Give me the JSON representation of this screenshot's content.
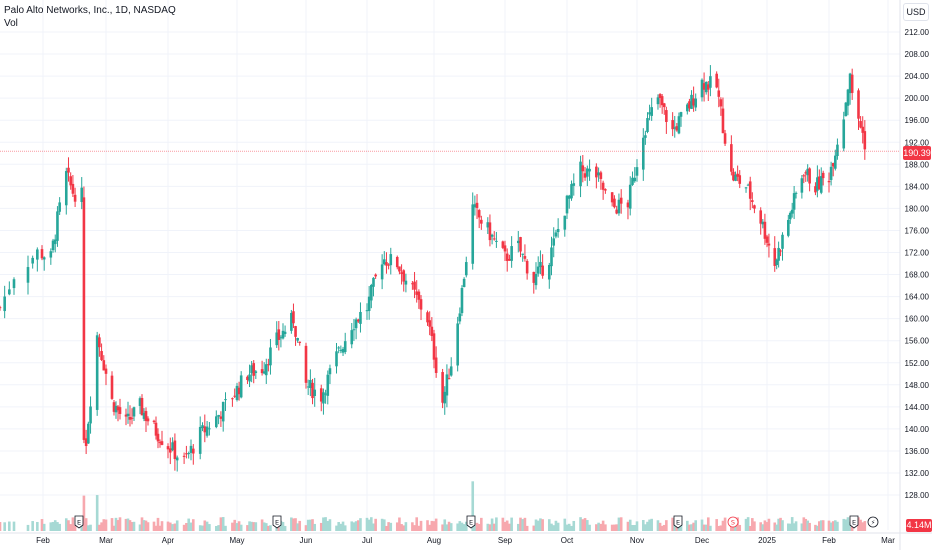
{
  "header": {
    "symbol_line": "Palo Alto Networks, Inc., 1D, NASDAQ",
    "volume_label": "Vol"
  },
  "currency": "USD",
  "last_price_label": "190.39",
  "last_volume_label": "4.14M",
  "colors": {
    "up": "#26a69a",
    "down": "#f23645",
    "vol_up": "#a6d9d4",
    "vol_down": "#f7a8ae",
    "grid": "#f0f3fa",
    "price_line": "#f23645"
  },
  "chart_data": {
    "type": "candlestick",
    "title": "Palo Alto Networks, Inc., 1D, NASDAQ",
    "xlabel": "",
    "ylabel": "",
    "ylim": [
      124,
      214
    ],
    "y_ticks": [
      128,
      132,
      136,
      140,
      144,
      148,
      152,
      156,
      160,
      164,
      168,
      172,
      176,
      180,
      184,
      188,
      192,
      196,
      200,
      204,
      208,
      212
    ],
    "y_tick_labels": [
      "128.00",
      "132.00",
      "136.00",
      "140.00",
      "144.00",
      "148.00",
      "152.00",
      "156.00",
      "160.00",
      "164.00",
      "168.00",
      "172.00",
      "176.00",
      "180.00",
      "184.00",
      "188.00",
      "192.00",
      "196.00",
      "200.00",
      "204.00",
      "208.00",
      "212.00"
    ],
    "x_labels": [
      "Feb",
      "Mar",
      "Apr",
      "May",
      "Jun",
      "Jul",
      "Aug",
      "Sep",
      "Oct",
      "Nov",
      "Dec",
      "2025",
      "Feb",
      "Mar"
    ],
    "last_price": 190.39,
    "grid": true,
    "events": [
      {
        "type": "earnings",
        "label": "E"
      },
      {
        "type": "earnings",
        "label": "E"
      },
      {
        "type": "earnings",
        "label": "E"
      },
      {
        "type": "earnings",
        "label": "E"
      },
      {
        "type": "split",
        "label": "S"
      },
      {
        "type": "earnings",
        "label": "E"
      },
      {
        "type": "upcoming",
        "label": "⚡"
      }
    ],
    "close_path": [
      {
        "date": "2024-01-23",
        "close": 162
      },
      {
        "date": "2024-01-26",
        "close": 168
      },
      {
        "date": "2024-01-31",
        "close": 172
      },
      {
        "date": "2024-02-05",
        "close": 171
      },
      {
        "date": "2024-02-08",
        "close": 178
      },
      {
        "date": "2024-02-12",
        "close": 186
      },
      {
        "date": "2024-02-15",
        "close": 183
      },
      {
        "date": "2024-02-20",
        "close": 182
      },
      {
        "date": "2024-02-21",
        "close": 138
      },
      {
        "date": "2024-02-26",
        "close": 157
      },
      {
        "date": "2024-03-04",
        "close": 145
      },
      {
        "date": "2024-03-11",
        "close": 141
      },
      {
        "date": "2024-03-18",
        "close": 144
      },
      {
        "date": "2024-03-25",
        "close": 140
      },
      {
        "date": "2024-04-01",
        "close": 137
      },
      {
        "date": "2024-04-08",
        "close": 134
      },
      {
        "date": "2024-04-15",
        "close": 139
      },
      {
        "date": "2024-04-22",
        "close": 142
      },
      {
        "date": "2024-04-29",
        "close": 146
      },
      {
        "date": "2024-05-06",
        "close": 150
      },
      {
        "date": "2024-05-13",
        "close": 151
      },
      {
        "date": "2024-05-20",
        "close": 156
      },
      {
        "date": "2024-05-28",
        "close": 160
      },
      {
        "date": "2024-06-03",
        "close": 148
      },
      {
        "date": "2024-06-10",
        "close": 146
      },
      {
        "date": "2024-06-17",
        "close": 153
      },
      {
        "date": "2024-06-24",
        "close": 159
      },
      {
        "date": "2024-07-01",
        "close": 162
      },
      {
        "date": "2024-07-08",
        "close": 171
      },
      {
        "date": "2024-07-15",
        "close": 170
      },
      {
        "date": "2024-07-22",
        "close": 165
      },
      {
        "date": "2024-07-29",
        "close": 160
      },
      {
        "date": "2024-08-05",
        "close": 145
      },
      {
        "date": "2024-08-09",
        "close": 152
      },
      {
        "date": "2024-08-14",
        "close": 165
      },
      {
        "date": "2024-08-19",
        "close": 180
      },
      {
        "date": "2024-08-26",
        "close": 176
      },
      {
        "date": "2024-09-03",
        "close": 171
      },
      {
        "date": "2024-09-09",
        "close": 173
      },
      {
        "date": "2024-09-16",
        "close": 167
      },
      {
        "date": "2024-09-23",
        "close": 171
      },
      {
        "date": "2024-09-30",
        "close": 180
      },
      {
        "date": "2024-10-07",
        "close": 187
      },
      {
        "date": "2024-10-14",
        "close": 186
      },
      {
        "date": "2024-10-21",
        "close": 180
      },
      {
        "date": "2024-10-28",
        "close": 181
      },
      {
        "date": "2024-11-04",
        "close": 194
      },
      {
        "date": "2024-11-11",
        "close": 200
      },
      {
        "date": "2024-11-18",
        "close": 194
      },
      {
        "date": "2024-11-25",
        "close": 198
      },
      {
        "date": "2024-12-02",
        "close": 203
      },
      {
        "date": "2024-12-09",
        "close": 202
      },
      {
        "date": "2024-12-16",
        "close": 186
      },
      {
        "date": "2024-12-23",
        "close": 184
      },
      {
        "date": "2024-12-30",
        "close": 178
      },
      {
        "date": "2025-01-06",
        "close": 170
      },
      {
        "date": "2025-01-13",
        "close": 178
      },
      {
        "date": "2025-01-21",
        "close": 187
      },
      {
        "date": "2025-01-27",
        "close": 184
      },
      {
        "date": "2025-02-03",
        "close": 186
      },
      {
        "date": "2025-02-10",
        "close": 197
      },
      {
        "date": "2025-02-13",
        "close": 205
      },
      {
        "date": "2025-02-14",
        "close": 200
      },
      {
        "date": "2025-02-18",
        "close": 195
      },
      {
        "date": "2025-02-21",
        "close": 190.39
      }
    ]
  }
}
